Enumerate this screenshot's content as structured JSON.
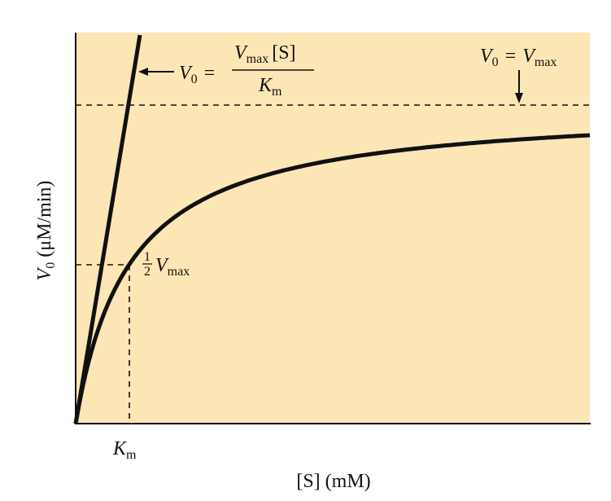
{
  "y_axis_label": {
    "symbol": "V",
    "subscript": "0",
    "units": "(μM/min)"
  },
  "x_axis_label": "[S] (mM)",
  "km_label": {
    "symbol": "K",
    "subscript": "m"
  },
  "half_vmax_label": {
    "numerator": "1",
    "denominator": "2",
    "symbol": "V",
    "subscript": "max"
  },
  "slope_label": {
    "left_symbol": "V",
    "left_subscript": "0",
    "equals": "=",
    "num_symbol": "V",
    "num_subscript": "max",
    "num_rest": "[S]",
    "den_symbol": "K",
    "den_subscript": "m"
  },
  "vmax_label": {
    "left_symbol": "V",
    "left_subscript": "0",
    "equals": "=",
    "right_symbol": "V",
    "right_subscript": "max"
  }
}
